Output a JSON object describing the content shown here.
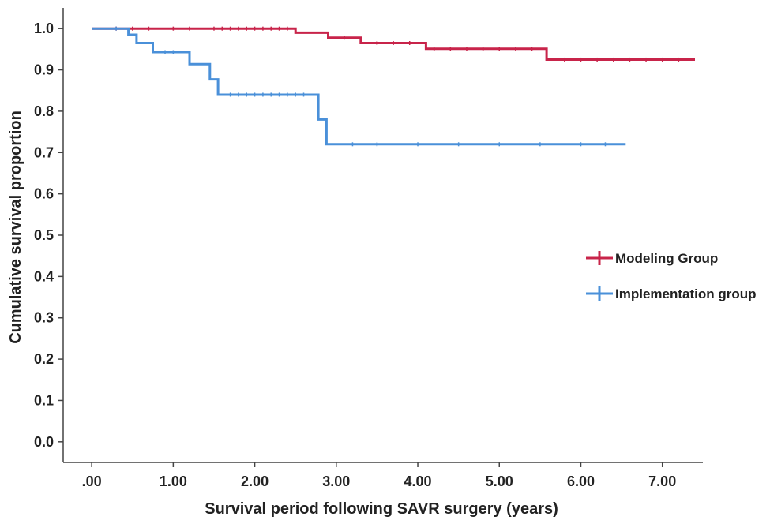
{
  "chart_data": {
    "type": "line",
    "title": "",
    "xlabel": "Survival period following SAVR surgery (years)",
    "ylabel": "Cumulative survival proportion",
    "xlim": [
      -0.35,
      7.4
    ],
    "ylim": [
      -0.05,
      1.05
    ],
    "x_ticks": [
      0,
      1,
      2,
      3,
      4,
      5,
      6,
      7
    ],
    "x_tick_labels": [
      ".00",
      "1.00",
      "2.00",
      "3.00",
      "4.00",
      "5.00",
      "6.00",
      "7.00"
    ],
    "y_ticks": [
      0.0,
      0.1,
      0.2,
      0.3,
      0.4,
      0.5,
      0.6,
      0.7,
      0.8,
      0.9,
      1.0
    ],
    "y_tick_labels": [
      "0.0",
      "0.1",
      "0.2",
      "0.3",
      "0.4",
      "0.5",
      "0.6",
      "0.7",
      "0.8",
      "0.9",
      "1.0"
    ],
    "legend_position": "right",
    "series": [
      {
        "name": "Modeling Group",
        "color": "#c8244a",
        "steps": [
          [
            0.0,
            1.0
          ],
          [
            2.5,
            0.99
          ],
          [
            2.9,
            0.978
          ],
          [
            3.3,
            0.965
          ],
          [
            4.1,
            0.951
          ],
          [
            5.58,
            0.925
          ],
          [
            7.4,
            0.925
          ]
        ],
        "censor_x": [
          0.3,
          0.5,
          0.7,
          1.0,
          1.2,
          1.5,
          1.6,
          1.7,
          1.8,
          1.9,
          2.0,
          2.1,
          2.2,
          2.3,
          2.4,
          3.1,
          3.5,
          3.7,
          3.9,
          4.2,
          4.4,
          4.6,
          4.8,
          5.0,
          5.2,
          5.4,
          5.8,
          6.0,
          6.2,
          6.4,
          6.6,
          6.8,
          7.0,
          7.2
        ]
      },
      {
        "name": "Implementation group",
        "color": "#4a90d9",
        "steps": [
          [
            0.0,
            1.0
          ],
          [
            0.45,
            0.985
          ],
          [
            0.55,
            0.965
          ],
          [
            0.75,
            0.943
          ],
          [
            1.2,
            0.914
          ],
          [
            1.45,
            0.877
          ],
          [
            1.55,
            0.84
          ],
          [
            2.78,
            0.78
          ],
          [
            2.88,
            0.72
          ],
          [
            6.55,
            0.72
          ]
        ],
        "censor_x": [
          0.3,
          0.9,
          1.0,
          1.7,
          1.8,
          1.9,
          2.0,
          2.1,
          2.2,
          2.3,
          2.4,
          2.5,
          2.6,
          3.2,
          3.5,
          4.0,
          4.5,
          5.0,
          5.5,
          6.0,
          6.3
        ]
      }
    ]
  }
}
